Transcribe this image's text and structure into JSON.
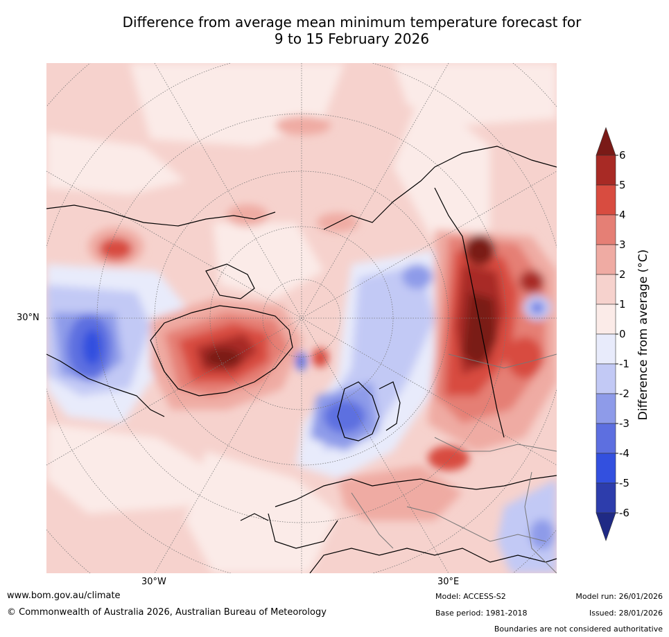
{
  "title": {
    "line1": "Difference from average mean minimum temperature forecast for",
    "line2": "9 to 15 February 2026"
  },
  "axis_labels": {
    "lat_30n": "30°N",
    "lon_30w": "30°W",
    "lon_30e": "30°E"
  },
  "colorbar": {
    "label": "Difference from average (°C)",
    "ticks": [
      "6",
      "5",
      "4",
      "3",
      "2",
      "1",
      "0",
      "-1",
      "-2",
      "-3",
      "-4",
      "-5",
      "-6"
    ],
    "colors": {
      "over": "#7a1a17",
      "b6_5": "#a82a25",
      "b5_4": "#d84c40",
      "b4_3": "#e57f75",
      "b3_2": "#efaba3",
      "b2_1": "#f6d2cd",
      "b1_0": "#fbebe8",
      "b0_m1": "#e8ebfb",
      "bm1_m2": "#c2c9f5",
      "bm2_m3": "#8e9be9",
      "bm3_m4": "#5d6fe0",
      "bm4_m5": "#3350df",
      "bm5_m6": "#2d3dac",
      "under": "#1f2a85"
    }
  },
  "footer": {
    "url": "www.bom.gov.au/climate",
    "copyright": "© Commonwealth of Australia 2026, Australian Bureau of Meteorology",
    "model": "Model: ACCESS-S2",
    "base_period": "Base period: 1981-2018",
    "model_run": "Model run: 26/01/2026",
    "issued": "Issued: 28/01/2026",
    "disclaimer": "Boundaries are not considered authoritative"
  }
}
